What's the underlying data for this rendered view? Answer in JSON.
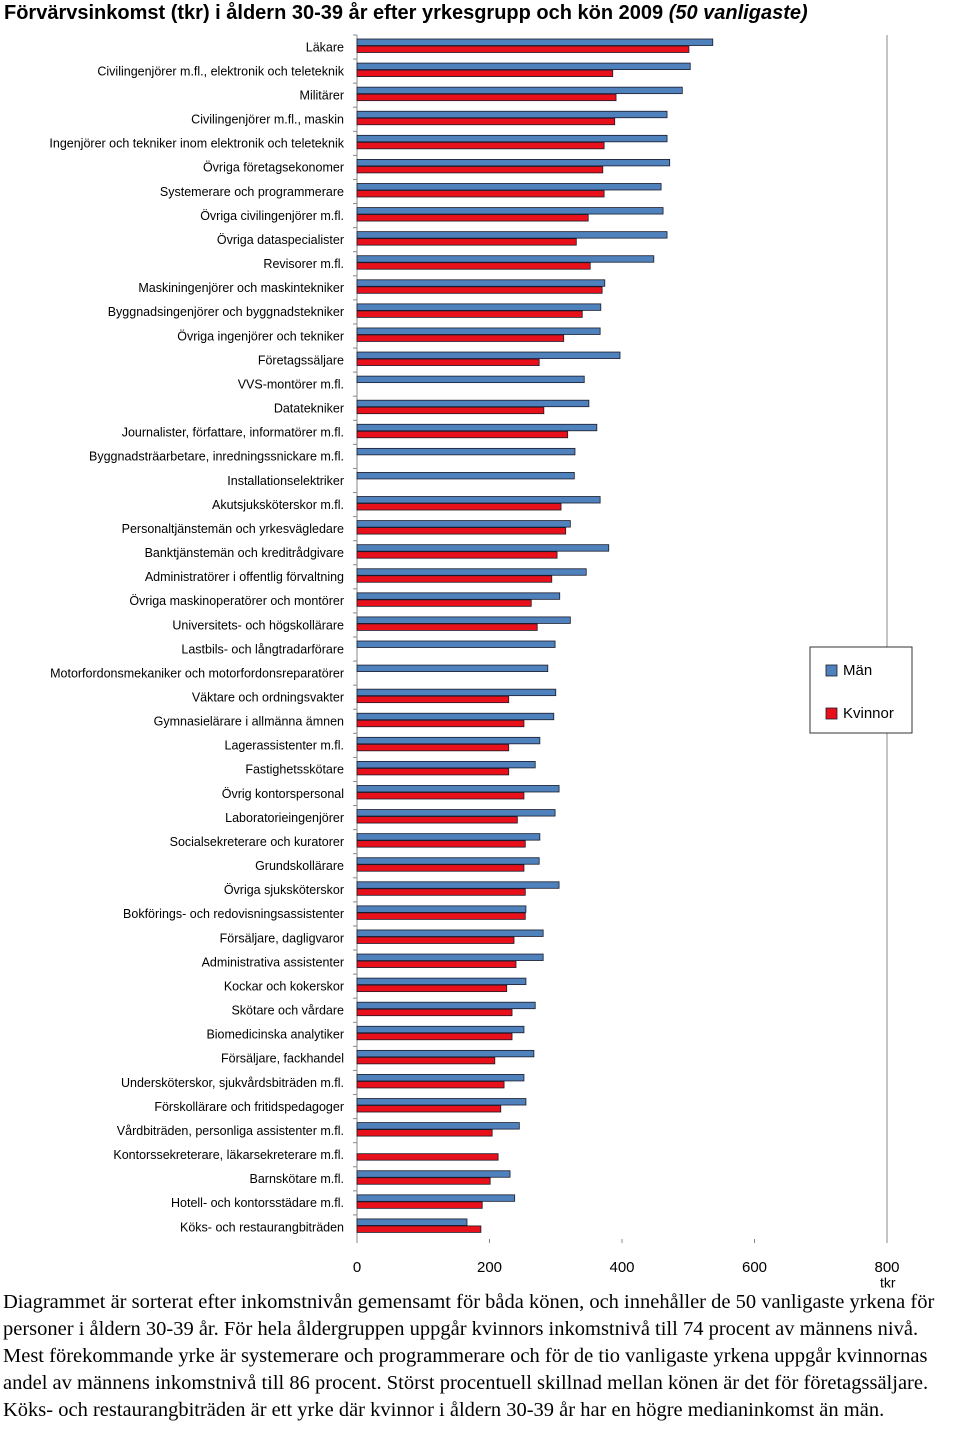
{
  "chart_data": {
    "type": "bar",
    "orientation": "horizontal",
    "title": "Förvärvsinkomst (tkr) i åldern 30-39 år efter yrkesgrupp och kön 2009",
    "title_note": "(50 vanligaste)",
    "x_label": "tkr",
    "categories": [
      "Läkare",
      "Civilingenjörer m.fl., elektronik och teleteknik",
      "Militärer",
      "Civilingenjörer m.fl., maskin",
      "Ingenjörer och tekniker inom elektronik och teleteknik",
      "Övriga företagsekonomer",
      "Systemerare och programmerare",
      "Övriga civilingenjörer m.fl.",
      "Övriga dataspecialister",
      "Revisorer m.fl.",
      "Maskiningenjörer och maskintekniker",
      "Byggnadsingenjörer och byggnadstekniker",
      "Övriga ingenjörer och tekniker",
      "Företagssäljare",
      "VVS-montörer m.fl.",
      "Datatekniker",
      "Journalister, författare, informatörer m.fl.",
      "Byggnadsträarbetare, inredningssnickare m.fl.",
      "Installationselektriker",
      "Akutsjuksköterskor m.fl.",
      "Personaltjänstemän och yrkesvägledare",
      "Banktjänstemän och kreditrådgivare",
      "Administratörer i offentlig förvaltning",
      "Övriga maskinoperatörer och montörer",
      "Universitets- och högskollärare",
      "Lastbils- och långtradarförare",
      "Motorfordonsmekaniker och motorfordonsreparatörer",
      "Väktare och ordningsvakter",
      "Gymnasielärare i allmänna ämnen",
      "Lagerassistenter m.fl.",
      "Fastighetsskötare",
      "Övrig kontorspersonal",
      "Laboratorieingenjörer",
      "Socialsekreterare och kuratorer",
      "Grundskollärare",
      "Övriga sjuksköterskor",
      "Bokförings- och redovisningsassistenter",
      "Försäljare, dagligvaror",
      "Administrativa assistenter",
      "Kockar och kokerskor",
      "Skötare och vårdare",
      "Biomedicinska analytiker",
      "Försäljare, fackhandel",
      "Undersköterskor, sjukvårdsbiträden m.fl.",
      "Förskollärare och fritidspedagoger",
      "Vårdbiträden, personliga assistenter m.fl.",
      "Kontorssekreterare, läkarsekreterare m.fl.",
      "Barnskötare m.fl.",
      "Hotell- och kontorsstädare m.fl.",
      "Köks- och restaurangbiträden"
    ],
    "series": [
      {
        "name": "Män",
        "color": "#4f81bd",
        "values": [
          537,
          503,
          491,
          468,
          468,
          472,
          459,
          462,
          468,
          448,
          374,
          368,
          367,
          397,
          343,
          350,
          362,
          329,
          328,
          367,
          322,
          380,
          346,
          306,
          322,
          299,
          288,
          300,
          297,
          276,
          269,
          305,
          299,
          276,
          275,
          305,
          255,
          281,
          281,
          255,
          269,
          252,
          267,
          252,
          255,
          245,
          null,
          231,
          238,
          166
        ]
      },
      {
        "name": "Kvinnor",
        "color": "#e8101a",
        "values": [
          501,
          386,
          391,
          389,
          373,
          371,
          373,
          349,
          331,
          352,
          370,
          340,
          312,
          275,
          null,
          282,
          318,
          null,
          null,
          308,
          315,
          302,
          294,
          263,
          272,
          null,
          null,
          229,
          252,
          229,
          229,
          252,
          242,
          254,
          252,
          254,
          254,
          237,
          240,
          226,
          234,
          234,
          208,
          222,
          217,
          204,
          213,
          201,
          189,
          187
        ]
      }
    ],
    "xlim": [
      0,
      800
    ],
    "xticks": [
      0,
      200,
      400,
      600,
      800
    ],
    "note": "Diagrammet är sorterat efter inkomstnivån gemensamt för båda könen, och innehåller de 50 vanligaste yrkena för personer i åldern 30-39 år. För hela åldergruppen uppgår kvinnors inkomstnivå till 74 procent av männens nivå. Mest förekommande yrke är systemerare och programmerare och för de tio vanligaste yrkena uppgår kvinnornas andel av männens inkomstnivå till 86 procent. Störst procentuell skillnad mellan könen är det för företagssäljare. Köks- och restaurangbiträden är ett yrke där kvinnor i åldern 30-39 år har en högre medianinkomst än män."
  }
}
